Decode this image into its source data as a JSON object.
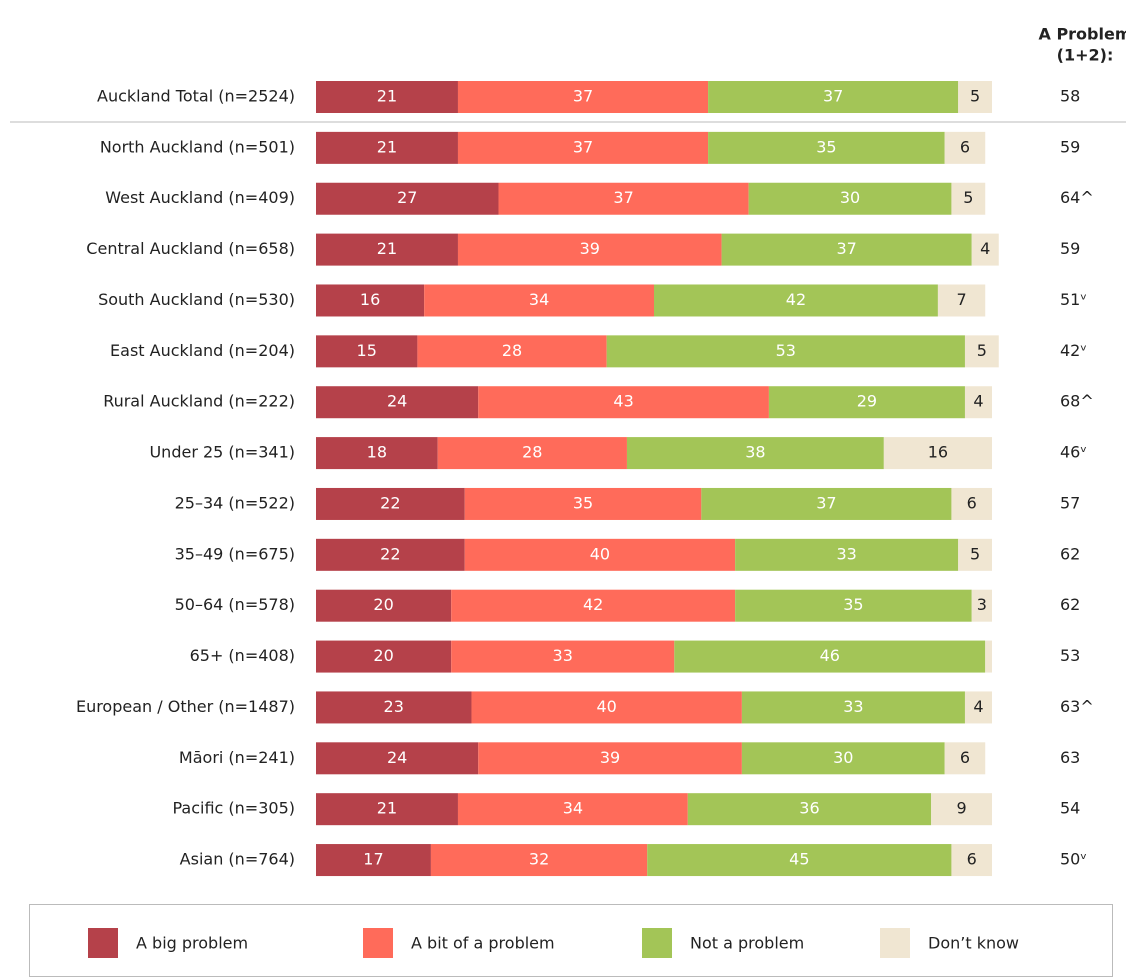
{
  "chart_data": {
    "type": "stacked-bar-horizontal",
    "categories": [
      "Auckland Total (n=2524)",
      "North Auckland (n=501)",
      "West Auckland (n=409)",
      "Central Auckland (n=658)",
      "South Auckland (n=530)",
      "East Auckland (n=204)",
      "Rural Auckland (n=222)",
      "Under 25 (n=341)",
      "25–34 (n=522)",
      "35–49 (n=675)",
      "50–64 (n=578)",
      "65+ (n=408)",
      "European / Other (n=1487)",
      "Māori (n=241)",
      "Pacific (n=305)",
      "Asian (n=764)"
    ],
    "series": [
      {
        "name": "A big problem",
        "color": "#b5414a",
        "values": [
          21,
          21,
          27,
          21,
          16,
          15,
          24,
          18,
          22,
          22,
          20,
          20,
          23,
          24,
          21,
          17
        ]
      },
      {
        "name": "A bit of a problem",
        "color": "#ff6b5a",
        "values": [
          37,
          37,
          37,
          39,
          34,
          28,
          43,
          28,
          35,
          40,
          42,
          33,
          40,
          39,
          34,
          32
        ]
      },
      {
        "name": "Not a problem",
        "color": "#a3c557",
        "values": [
          37,
          35,
          30,
          37,
          42,
          53,
          29,
          38,
          37,
          33,
          35,
          46,
          33,
          30,
          36,
          45
        ]
      },
      {
        "name": "Don’t know",
        "color": "#f0e6d2",
        "values": [
          5,
          6,
          5,
          4,
          7,
          5,
          4,
          16,
          6,
          5,
          3,
          1,
          4,
          6,
          9,
          6
        ],
        "value_labels": [
          "5",
          "6",
          "5",
          "4",
          "7",
          "5",
          "4",
          "16",
          "6",
          "5",
          "3",
          null,
          "4",
          "6",
          "9",
          "6"
        ]
      }
    ],
    "xlim": [
      0,
      100
    ],
    "net": {
      "title": [
        "A Problem",
        "(1+2):"
      ],
      "values": [
        58,
        59,
        64,
        59,
        51,
        42,
        68,
        46,
        57,
        62,
        62,
        53,
        63,
        63,
        54,
        50
      ],
      "value_labels": [
        "58",
        "59",
        "64^",
        "59",
        "51ᵛ",
        "42ᵛ",
        "68^",
        "46ᵛ",
        "57",
        "62",
        "62",
        "53",
        "63^",
        "63",
        "54",
        "50ᵛ"
      ]
    }
  }
}
